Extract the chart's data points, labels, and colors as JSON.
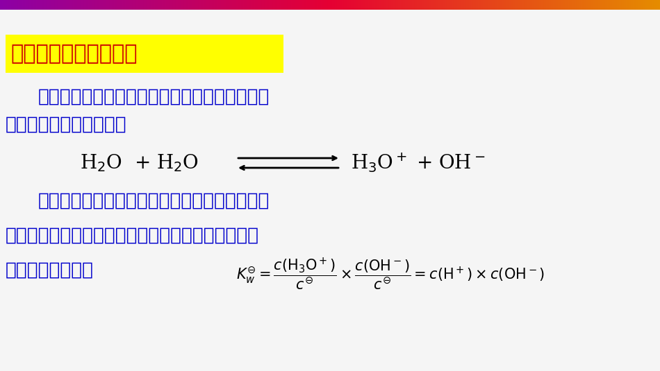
{
  "bg_color": "#f5f5f5",
  "title_text": "水的解离平衡和离子积",
  "title_bg": "#ffff00",
  "title_color": "#cc0000",
  "body_color": "#0000cc",
  "equation_color": "#000000",
  "line1": "水作为最重要的溶剂，既可以作为酸给出质子，",
  "line2": "又可以作为碱接受质子。",
  "line3": "该反应称为水的质子自递反应，该反应的标准平",
  "line4": "衡常数称为水的质子自递常数，也称为水的离子积常",
  "line5": "数，其表达式为："
}
